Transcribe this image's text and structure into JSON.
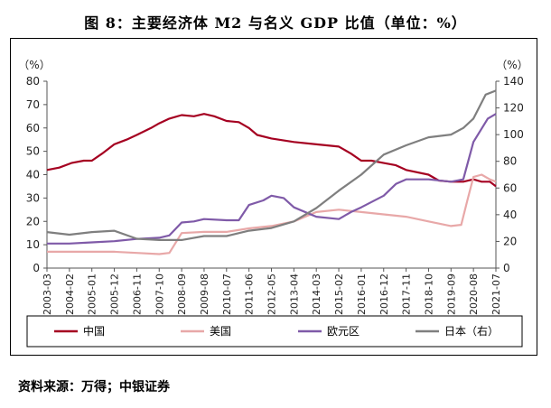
{
  "page": {
    "title": "图 8：主要经济体 M2 与名义 GDP 比值（单位：%）",
    "source": "资料来源：万得；中银证券"
  },
  "chart_data": {
    "type": "line",
    "left_unit": "（%）",
    "right_unit": "（%）",
    "x_tick_labels": [
      "2003-03",
      "2004-02",
      "2005-01",
      "2005-12",
      "2006-11",
      "2007-10",
      "2008-09",
      "2009-08",
      "2010-07",
      "2011-06",
      "2012-05",
      "2013-04",
      "2014-03",
      "2015-02",
      "2016-01",
      "2016-12",
      "2017-11",
      "2018-10",
      "2019-09",
      "2020-08",
      "2021-07"
    ],
    "x_range_months": [
      "2003-03",
      "2021-07"
    ],
    "ylim_left": [
      0,
      80
    ],
    "yticks_left": [
      0,
      10,
      20,
      30,
      40,
      50,
      60,
      70,
      80
    ],
    "ylim_right": [
      0,
      140
    ],
    "yticks_right": [
      0,
      20,
      40,
      60,
      80,
      100,
      120,
      140
    ],
    "legend_position": "bottom",
    "grid": false,
    "series": [
      {
        "name": "中国",
        "axis": "left",
        "color": "#a50021",
        "points": [
          [
            "2003-03",
            42
          ],
          [
            "2003-09",
            43
          ],
          [
            "2004-03",
            45
          ],
          [
            "2004-09",
            46
          ],
          [
            "2005-01",
            46
          ],
          [
            "2005-06",
            49
          ],
          [
            "2005-12",
            53
          ],
          [
            "2006-06",
            55
          ],
          [
            "2006-11",
            57
          ],
          [
            "2007-06",
            60
          ],
          [
            "2007-10",
            62
          ],
          [
            "2008-03",
            64
          ],
          [
            "2008-09",
            65.5
          ],
          [
            "2009-03",
            65
          ],
          [
            "2009-08",
            66
          ],
          [
            "2010-01",
            65
          ],
          [
            "2010-07",
            63
          ],
          [
            "2011-01",
            62.5
          ],
          [
            "2011-06",
            60
          ],
          [
            "2011-10",
            57
          ],
          [
            "2012-05",
            55.5
          ],
          [
            "2013-04",
            54
          ],
          [
            "2014-03",
            53
          ],
          [
            "2015-02",
            52
          ],
          [
            "2015-08",
            49
          ],
          [
            "2016-01",
            46
          ],
          [
            "2016-06",
            46
          ],
          [
            "2016-12",
            45
          ],
          [
            "2017-06",
            44
          ],
          [
            "2017-11",
            42
          ],
          [
            "2018-10",
            40
          ],
          [
            "2019-03",
            37.5
          ],
          [
            "2019-09",
            37
          ],
          [
            "2020-03",
            37
          ],
          [
            "2020-08",
            38
          ],
          [
            "2020-12",
            37
          ],
          [
            "2021-04",
            37
          ],
          [
            "2021-07",
            35
          ]
        ]
      },
      {
        "name": "美国",
        "axis": "left",
        "color": "#e8a8a8",
        "points": [
          [
            "2003-03",
            7
          ],
          [
            "2004-02",
            7
          ],
          [
            "2005-01",
            7
          ],
          [
            "2005-12",
            7
          ],
          [
            "2006-11",
            6.5
          ],
          [
            "2007-10",
            6
          ],
          [
            "2008-03",
            6.5
          ],
          [
            "2008-09",
            15
          ],
          [
            "2009-08",
            15.5
          ],
          [
            "2010-07",
            15.5
          ],
          [
            "2011-06",
            17
          ],
          [
            "2012-05",
            18
          ],
          [
            "2013-04",
            20
          ],
          [
            "2014-03",
            24
          ],
          [
            "2015-02",
            25
          ],
          [
            "2016-01",
            24
          ],
          [
            "2016-12",
            23
          ],
          [
            "2017-11",
            22
          ],
          [
            "2018-10",
            20
          ],
          [
            "2019-09",
            18
          ],
          [
            "2020-02",
            18.5
          ],
          [
            "2020-05",
            29
          ],
          [
            "2020-08",
            39
          ],
          [
            "2020-12",
            40
          ],
          [
            "2021-04",
            38
          ],
          [
            "2021-07",
            37
          ]
        ]
      },
      {
        "name": "欧元区",
        "axis": "left",
        "color": "#7f5aa8",
        "points": [
          [
            "2003-03",
            10.5
          ],
          [
            "2004-02",
            10.5
          ],
          [
            "2005-01",
            11
          ],
          [
            "2005-12",
            11.5
          ],
          [
            "2006-11",
            12.5
          ],
          [
            "2007-10",
            13
          ],
          [
            "2008-03",
            14
          ],
          [
            "2008-09",
            19.5
          ],
          [
            "2009-03",
            20
          ],
          [
            "2009-08",
            21
          ],
          [
            "2010-07",
            20.5
          ],
          [
            "2011-01",
            20.5
          ],
          [
            "2011-06",
            27
          ],
          [
            "2012-01",
            29
          ],
          [
            "2012-05",
            31
          ],
          [
            "2012-11",
            30
          ],
          [
            "2013-04",
            26
          ],
          [
            "2014-03",
            22
          ],
          [
            "2015-02",
            21
          ],
          [
            "2015-08",
            24
          ],
          [
            "2016-01",
            26
          ],
          [
            "2016-12",
            31
          ],
          [
            "2017-06",
            36
          ],
          [
            "2017-11",
            38
          ],
          [
            "2018-10",
            38
          ],
          [
            "2019-09",
            37
          ],
          [
            "2020-03",
            38
          ],
          [
            "2020-08",
            54
          ],
          [
            "2021-03",
            64
          ],
          [
            "2021-07",
            66
          ]
        ]
      },
      {
        "name": "日本（右）",
        "axis": "right",
        "color": "#7f7f7f",
        "points": [
          [
            "2003-03",
            27
          ],
          [
            "2004-02",
            25
          ],
          [
            "2005-01",
            27
          ],
          [
            "2005-12",
            28
          ],
          [
            "2006-11",
            22
          ],
          [
            "2007-10",
            21
          ],
          [
            "2008-09",
            21
          ],
          [
            "2009-08",
            24
          ],
          [
            "2010-07",
            24
          ],
          [
            "2011-06",
            28
          ],
          [
            "2012-05",
            30
          ],
          [
            "2013-04",
            35
          ],
          [
            "2014-03",
            45
          ],
          [
            "2015-02",
            58
          ],
          [
            "2016-01",
            70
          ],
          [
            "2016-12",
            85
          ],
          [
            "2017-11",
            92
          ],
          [
            "2018-10",
            98
          ],
          [
            "2019-09",
            100
          ],
          [
            "2020-03",
            105
          ],
          [
            "2020-08",
            112
          ],
          [
            "2021-02",
            130
          ],
          [
            "2021-07",
            133
          ]
        ]
      }
    ]
  }
}
